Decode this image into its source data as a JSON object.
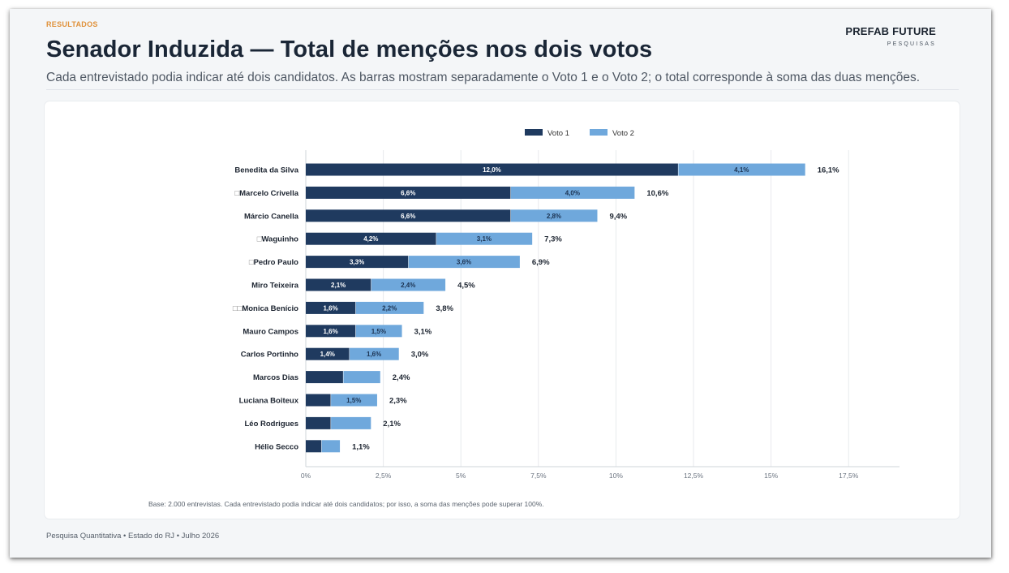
{
  "header": {
    "eyebrow": "RESULTADOS",
    "title": "Senador Induzida — Total de menções nos dois votos",
    "subtitle": "Cada entrevistado podia indicar até dois candidatos. As barras mostram separadamente o Voto 1 e o Voto 2; o total corresponde à soma das duas menções.",
    "brand_name": "PREFAB FUTURE",
    "brand_sub": "PESQUISAS"
  },
  "note": "Base: 2.000 entrevistas. Cada entrevistado podia indicar até dois candidatos; por isso, a soma das menções pode superar 100%.",
  "footer": "Pesquisa Quantitativa • Estado do RJ • Julho 2026",
  "colors": {
    "voto1": "#1f3a5f",
    "voto2": "#6fa8dc",
    "grid": "#e8eaed",
    "axis": "#cfd4da"
  },
  "chart_data": {
    "type": "bar",
    "orientation": "horizontal",
    "stacked": true,
    "categories": [
      "Benedita da Silva",
      "Marcelo Crivella",
      "Márcio Canella",
      "Waguinho",
      "Pedro Paulo",
      "Miro Teixeira",
      "Monica Benício",
      "Mauro Campos",
      "Carlos Portinho",
      "Marcos Dias",
      "Luciana Boiteux",
      "Léo Rodrigues",
      "Hélio Secco"
    ],
    "category_prefix": [
      "",
      "□",
      "",
      "□",
      "□",
      "",
      "□□",
      "",
      "",
      "",
      "",
      "",
      ""
    ],
    "series": [
      {
        "name": "Voto 1",
        "values": [
          12.0,
          6.6,
          6.6,
          4.2,
          3.3,
          2.1,
          1.6,
          1.6,
          1.4,
          1.2,
          0.8,
          0.8,
          0.5
        ],
        "labels": [
          "12,0%",
          "6,6%",
          "6,6%",
          "4,2%",
          "3,3%",
          "2,1%",
          "1,6%",
          "1,6%",
          "1,4%",
          "",
          "",
          "",
          ""
        ]
      },
      {
        "name": "Voto 2",
        "values": [
          4.1,
          4.0,
          2.8,
          3.1,
          3.6,
          2.4,
          2.2,
          1.5,
          1.6,
          1.2,
          1.5,
          1.3,
          0.6
        ],
        "labels": [
          "4,1%",
          "4,0%",
          "2,8%",
          "3,1%",
          "3,6%",
          "2,4%",
          "2,2%",
          "1,5%",
          "1,6%",
          "",
          "1,5%",
          "",
          ""
        ]
      }
    ],
    "totals": [
      "16,1%",
      "10,6%",
      "9,4%",
      "7,3%",
      "6,9%",
      "4,5%",
      "3,8%",
      "3,1%",
      "3,0%",
      "2,4%",
      "2,3%",
      "2,1%",
      "1,1%"
    ],
    "xlim": [
      0,
      18.2
    ],
    "xticks": [
      0,
      2.5,
      5,
      7.5,
      10,
      12.5,
      15,
      17.5
    ],
    "xtick_labels": [
      "0%",
      "2,5%",
      "5%",
      "7,5%",
      "10%",
      "12,5%",
      "15%",
      "17,5%"
    ],
    "legend_position": "top",
    "grid": true
  }
}
